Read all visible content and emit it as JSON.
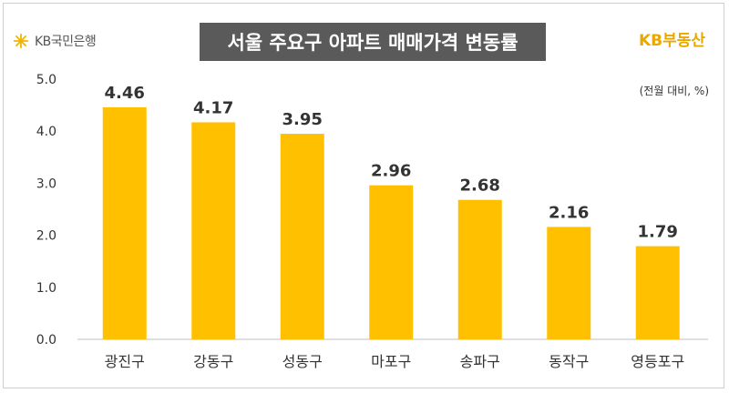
{
  "header": {
    "logo_text": "KB국민은행",
    "title": "서울 주요구 아파트 매매가격 변동률",
    "brand": "KB부동산",
    "unit_note": "(전월 대비, %)"
  },
  "colors": {
    "bar": "#FFC000",
    "title_bg": "#5A5A5A",
    "brand": "#E9A800"
  },
  "chart_data": {
    "type": "bar",
    "title": "서울 주요구 아파트 매매가격 변동률",
    "categories": [
      "광진구",
      "강동구",
      "성동구",
      "마포구",
      "송파구",
      "동작구",
      "영등포구"
    ],
    "values": [
      4.46,
      4.17,
      3.95,
      2.96,
      2.68,
      2.16,
      1.79
    ],
    "value_labels": [
      "4.46",
      "4.17",
      "3.95",
      "2.96",
      "2.68",
      "2.16",
      "1.79"
    ],
    "y_ticks": [
      "0.0",
      "1.0",
      "2.0",
      "3.0",
      "4.0",
      "5.0"
    ],
    "ylim": [
      0,
      5
    ],
    "grid": false,
    "legend": "none"
  }
}
